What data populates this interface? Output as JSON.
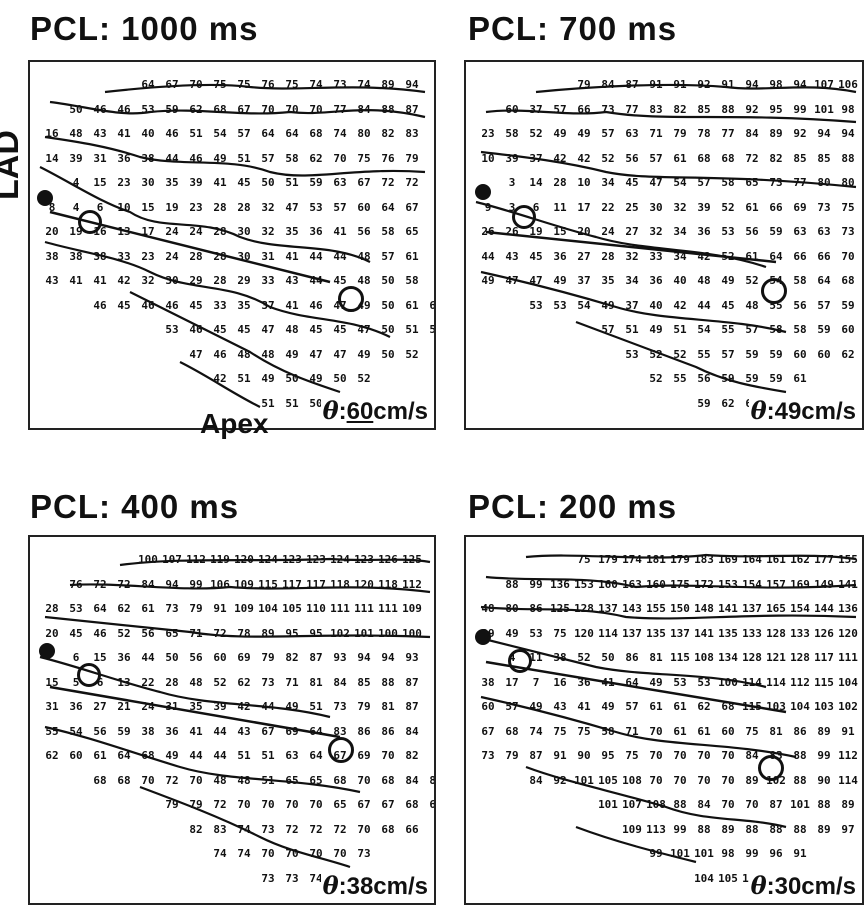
{
  "panels": [
    {
      "title": "PCL: 1000 ms",
      "cv_value": "60",
      "cv_unit": "cm/s",
      "rows": [
        "64 67 70 75 75 76 75 74 73 74 89 94",
        "50 46 46 53 59 62 68 67 70 70 70 77 84 88 87",
        "16 48 43 41 40 46 51 54 57 64 64 68 74 80 82 83",
        "14 39 31 36 38 44 46 49 51 57 58 62 70 75 76 79",
        "4 15 23 30 35 39 41 45 50 51 59 63 67 72 72",
        "8 4 6 10 15 19 23 28 28 32 47 53 57 60 64 67",
        "20 19 16 13 17 24 24 28 30 32 35 36 41 56 58 65",
        "38 38 38 33 23 24 28 28 30 31 41 44 44 48 57 61",
        "43 41 41 42 32 30 29 28 29 33 43 44 45 48 50 58",
        "46 45 46 46 45 33 35 37 41 46 47 49 50 61 63",
        "53 46 45 45 47 48 45 45 47 50 51 58",
        "47 46 48 48 49 47 47 49 50 52",
        "42 51 49 50 49 50 52",
        "51 51 50 5"
      ]
    },
    {
      "title": "PCL: 700 ms",
      "cv_value": "49",
      "cv_unit": "cm/s",
      "rows": [
        "79 84 87 91 91 92 91 94 98 94 107 106",
        "60 37 57 66 73 77 83 82 85 88 92 95 99 101 98",
        "23 58 52 49 49 57 63 71 79 78 77 84 89 92 94 94",
        "10 39 37 42 42 52 56 57 61 68 68 72 82 85 85 88",
        "3 14 28 10 34 45 47 54 57 58 65 73 77 80 80",
        "9 3 6 11 17 22 25 30 32 39 52 61 66 69 73 75",
        "26 26 19 15 20 24 27 32 34 36 53 56 59 63 63 73",
        "44 43 45 36 27 28 32 33 34 42 52 61 64 66 66 70",
        "49 47 47 49 37 35 34 36 40 48 49 52 54 58 64 68",
        "53 53 54 49 37 40 42 44 45 48 55 56 57 59 69",
        "57 51 49 51 54 55 57 58 58 59 60 63",
        "53 52 52 55 57 59 59 60 60 62",
        "52 55 56 59 59 59 61",
        "59 62 60 5"
      ]
    },
    {
      "title": "PCL: 400 ms",
      "cv_value": "38",
      "cv_unit": "cm/s",
      "rows": [
        "100 107 112 119 120 124 123 123 124 123 126 125",
        "76 72 72 84 94 99 106 109 115 117 117 118 120 118 112",
        "28 53 64 62 61 73 79 91 109 104 105 110 111 111 111 109",
        "20 45 46 52 56 65 71 72 78 89 95 95 102 101 100 100",
        "6 15 36 44 50 56 60 69 79 82 87 93 94 94 93",
        "15 5 6 13 22 28 48 52 62 73 71 81 84 85 88 87",
        "31 36 27 21 24 31 35 39 42 44 49 51 73 79 81 87",
        "55 54 56 59 38 36 41 44 43 67 69 64 83 86 86 84",
        "62 60 61 64 68 49 44 44 51 51 63 64 67 69 70 82",
        "68 68 70 72 70 48 48 51 65 65 68 70 68 84 87",
        "79 79 72 70 70 70 70 65 67 67 68 68",
        "82 83 74 73 72 72 72 70 68 66",
        "74 74 70 70 70 70 73",
        "73 73 74 7"
      ]
    },
    {
      "title": "PCL: 200 ms",
      "cv_value": "30",
      "cv_unit": "cm/s",
      "rows": [
        "75 179 174 181 179 183 169 164 161 162 177 155",
        "88 99 136 153 160 163 160 175 172 153 154 157 169 149 141",
        "48 80 86 125 128 137 143 155 150 148 141 137 165 154 144 136",
        "39 49 53 75 120 114 137 135 137 141 135 133 128 133 126 120",
        "4 11 38 52 50 86 81 115 108 134 128 121 128 117 111",
        "38 17 7 16 36 41 64 49 53 53 100 114 114 112 115 104",
        "60 57 49 43 41 49 57 61 61 62 68 115 103 104 103 102",
        "67 68 74 75 75 58 71 70 61 61 60 75 81 86 89 91",
        "73 79 87 91 90 95 75 70 70 70 70 84 83 88 99 112",
        "84 92 101 105 108 70 70 70 70 89 102 88 90 114 116",
        "101 107 108 88 84 70 70 87 101 88 89 97",
        "109 113 99 88 89 88 88 88 89 97",
        "99 101 101 98 99 96 91",
        "104 105 102 9"
      ]
    }
  ],
  "lad_label": "LAD",
  "apex_label": "Apex",
  "theta_symbol": "θ",
  "cv_colon": ":"
}
